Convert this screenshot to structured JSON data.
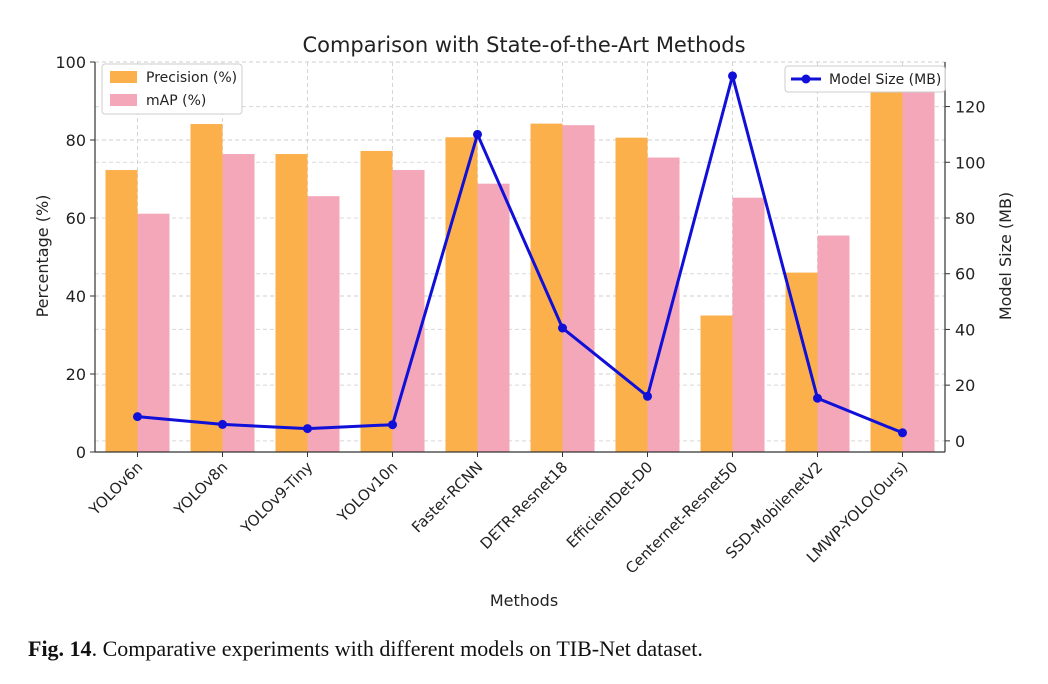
{
  "chart_data": {
    "type": "bar",
    "title": "Comparison with State-of-the-Art Methods",
    "xlabel": "Methods",
    "ylabel": "Percentage (%)",
    "y2label": "Model Size (MB)",
    "ylim": [
      0,
      100
    ],
    "y2lim": [
      -4,
      136
    ],
    "yticks": [
      0,
      20,
      40,
      60,
      80,
      100
    ],
    "y2ticks": [
      0,
      20,
      40,
      60,
      80,
      100,
      120
    ],
    "grid": true,
    "categories": [
      "YOLOv6n",
      "YOLOv8n",
      "YOLOv9-Tiny",
      "YOLOv10n",
      "Faster-RCNN",
      "DETR-Resnet18",
      "EfficientDet-D0",
      "Centernet-Resnet50",
      "SSD-MobilenetV2",
      "LMWP-YOLO(Ours)"
    ],
    "series": [
      {
        "name": "Precision (%)",
        "kind": "bar",
        "axis": "left",
        "color": "#FBB04C",
        "values": [
          72.3,
          84.1,
          76.4,
          77.2,
          80.7,
          84.2,
          80.6,
          35.0,
          46.0,
          95.0
        ]
      },
      {
        "name": "mAP (%)",
        "kind": "bar",
        "axis": "left",
        "color": "#F3A7B8",
        "values": [
          61.1,
          76.4,
          65.6,
          72.3,
          68.8,
          83.8,
          75.5,
          65.2,
          55.5,
          95.0
        ]
      },
      {
        "name": "Model Size (MB)",
        "kind": "line",
        "axis": "right",
        "color": "#1010D8",
        "values": [
          8.7,
          5.9,
          4.4,
          5.8,
          110.0,
          40.5,
          16.0,
          131.0,
          15.3,
          2.9
        ]
      }
    ],
    "legend_left_position": "top-left",
    "legend_right_position": "top-right"
  },
  "caption": {
    "label": "Fig. 14",
    "text": ".  Comparative experiments with different models on TIB-Net dataset."
  }
}
